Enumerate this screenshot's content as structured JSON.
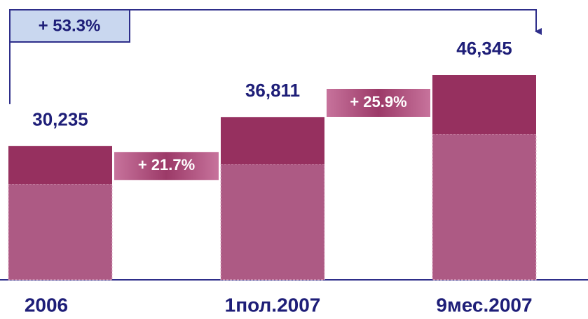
{
  "chart_data": {
    "type": "stacked_bar",
    "categories": [
      "2006",
      "1пол.2007",
      "9мес.2007"
    ],
    "series": [
      {
        "color": "#ad5a84",
        "values": [
          21600,
          26100,
          32900
        ]
      },
      {
        "color": "#96305f",
        "values": [
          8635,
          10711,
          13445
        ]
      }
    ],
    "totals": [
      30235,
      36811,
      46345
    ],
    "total_labels": [
      "30,235",
      "36,811",
      "46,345"
    ],
    "annotations": [
      "+ 21.7%",
      "+ 25.9%",
      "+ 53.3%"
    ]
  }
}
